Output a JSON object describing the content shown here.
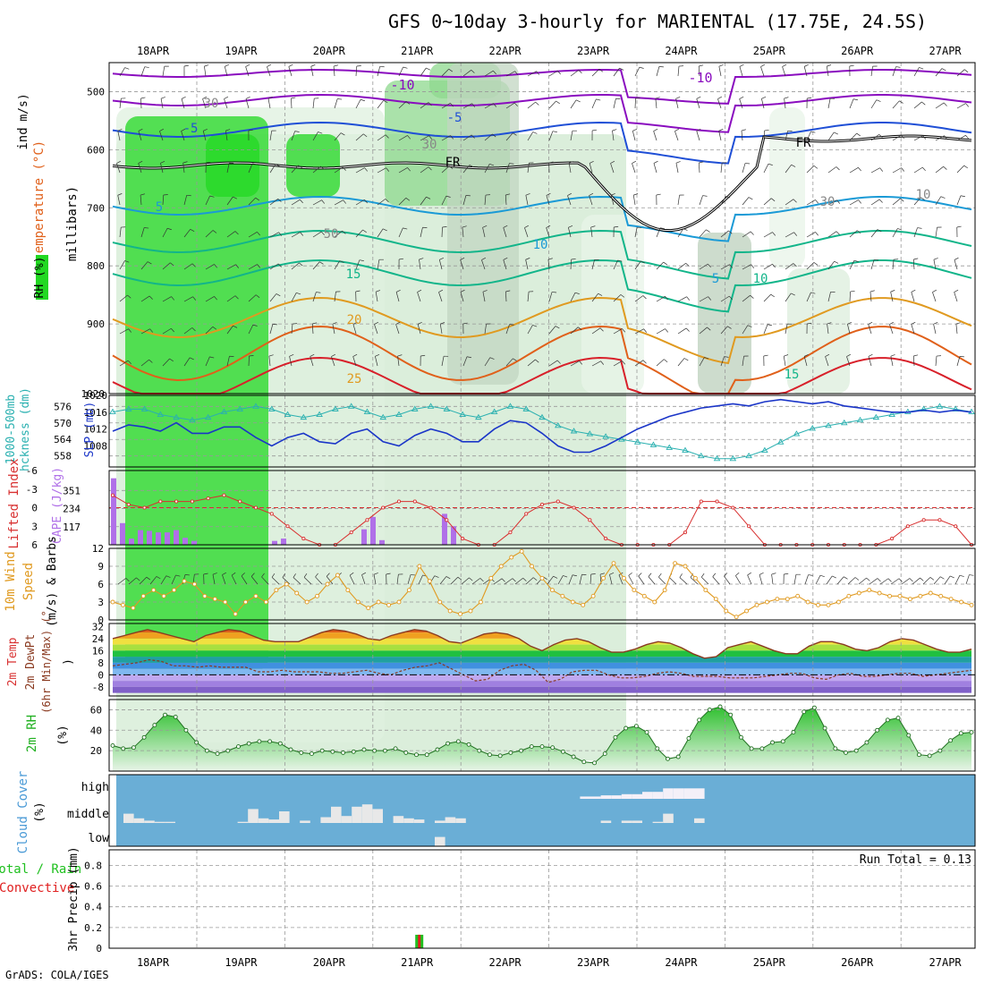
{
  "title": "GFS 0~10day 3-hourly for MARIENTAL (17.75E, 24.5S)",
  "footer": "GrADS: COLA/IGES",
  "colors": {
    "temp_purple": "#8a0dbf",
    "temp_blue": "#1f4fd6",
    "temp_lightblue": "#1a9ad6",
    "temp_teal": "#12b58a",
    "temp_orange": "#e09a20",
    "temp_dark_orange": "#e0601a",
    "temp_red": "#d8202a",
    "rh_green": "#22d822",
    "thickness": "#2ab0b0",
    "slp": "#1a35c8",
    "lifted_index": "#d83030",
    "cape": "#b070e8",
    "wind_speed": "#e09a20",
    "cloud_bg": "#6aaed6",
    "cloud_fill": "#e8e8e8",
    "precip_total": "#20c020",
    "precip_conv": "#e02020"
  },
  "chart_data": [
    {
      "type": "line",
      "panel": "upper-air",
      "y_axis_title": "RH (%) Temperature (°C) Wind (m/s) (millibars)",
      "y_ticks": [
        500,
        600,
        700,
        800,
        900,
        1020
      ],
      "ylim": [
        450,
        1020
      ],
      "date_labels": [
        "18APR",
        "19APR",
        "20APR",
        "21APR",
        "22APR",
        "23APR",
        "24APR",
        "25APR",
        "26APR",
        "27APR"
      ],
      "contour_labels": [
        "-10",
        "-10",
        "-5",
        "-5",
        "5",
        "10",
        "15",
        "20",
        "25",
        "5",
        "10",
        "15",
        "FR",
        "FR",
        "30",
        "30",
        "30",
        "50",
        "10"
      ]
    },
    {
      "type": "line",
      "panel": "thickness-slp",
      "y_left_title": "1000-500mb Thckness (dm)",
      "y_right_title": "SLP (mb)",
      "thickness_ticks": [
        576,
        570,
        564,
        558
      ],
      "slp_ticks": [
        1020,
        1016,
        1012,
        1008
      ],
      "series": [
        {
          "name": "Thickness",
          "values": [
            574,
            575,
            575,
            573,
            572,
            571,
            572,
            574,
            575,
            576,
            575,
            573,
            572,
            573,
            575,
            576,
            574,
            572,
            573,
            575,
            576,
            575,
            573,
            572,
            574,
            576,
            575,
            572,
            569,
            567,
            566,
            565,
            564,
            563,
            562,
            561,
            560,
            558,
            557,
            557,
            558,
            560,
            563,
            566,
            568,
            569,
            570,
            571,
            572,
            573,
            574,
            575,
            576,
            575,
            574
          ]
        },
        {
          "name": "SLP",
          "values": [
            1011.5,
            1013,
            1012.5,
            1011.5,
            1013.5,
            1011,
            1011,
            1012.5,
            1012.5,
            1010,
            1008,
            1010,
            1011,
            1009,
            1008.5,
            1011,
            1012,
            1009,
            1008,
            1010.5,
            1012,
            1011,
            1009,
            1009,
            1012,
            1014,
            1013.5,
            1011,
            1008,
            1006.5,
            1006.5,
            1008,
            1010,
            1012,
            1013.5,
            1015,
            1016,
            1017,
            1017.5,
            1018,
            1017.5,
            1018.5,
            1019,
            1018.5,
            1018,
            1018.5,
            1017.5,
            1017,
            1016.5,
            1016,
            1016,
            1016.5,
            1016,
            1016.5,
            1016
          ]
        }
      ]
    },
    {
      "type": "bar",
      "panel": "lifted-cape",
      "y_left_title": "Lifted Index",
      "y_right_title": "CAPE (J/kg)",
      "li_ticks": [
        -6,
        -3,
        0,
        3,
        6
      ],
      "cape_ticks": [
        351,
        234,
        117
      ],
      "series": [
        {
          "name": "CAPE",
          "values": [
            430,
            140,
            40,
            95,
            90,
            80,
            80,
            95,
            45,
            25,
            0,
            0,
            0,
            0,
            0,
            0,
            0,
            0,
            25,
            40,
            0,
            0,
            0,
            0,
            0,
            0,
            0,
            0,
            100,
            180,
            30,
            0,
            0,
            0,
            0,
            0,
            0,
            200,
            120,
            0
          ]
        },
        {
          "name": "Lifted Index",
          "values": [
            -2,
            -0.5,
            0,
            -1,
            -1,
            -1,
            -1.5,
            -2,
            -1,
            0,
            1,
            3,
            5,
            6,
            6,
            4,
            2,
            0,
            -1,
            -1,
            0,
            2,
            5,
            6,
            6,
            4,
            1,
            -0.5,
            -1,
            0,
            2,
            5,
            6,
            6,
            6,
            6,
            4,
            -1,
            -1,
            0,
            3,
            6,
            6,
            6,
            6,
            6,
            6,
            6,
            6,
            5,
            3,
            2,
            2,
            3,
            6
          ]
        }
      ]
    },
    {
      "type": "line",
      "panel": "wind-10m",
      "y_title": "10m Wind Speed (m/s) & Barbs",
      "y_ticks": [
        12,
        9,
        6,
        3,
        0
      ],
      "ylim": [
        0,
        12
      ],
      "series": [
        {
          "name": "Speed",
          "values": [
            3,
            2.5,
            2,
            4,
            5,
            4,
            5,
            6.5,
            6,
            4,
            3.5,
            3,
            1,
            3,
            4,
            3,
            5,
            6,
            4.5,
            3,
            4,
            6,
            7.5,
            5,
            3,
            2,
            3,
            2.5,
            3,
            5,
            9,
            6.5,
            3,
            1.5,
            1,
            1.5,
            3,
            7,
            9,
            10.5,
            11.5,
            9,
            7,
            5,
            4,
            3,
            2.5,
            4,
            7,
            9.5,
            7,
            5,
            4,
            3,
            5,
            9.5,
            9,
            7,
            5,
            3.5,
            1.5,
            0.5,
            1.5,
            2.5,
            3,
            3.5,
            3.5,
            4,
            3,
            2.5,
            2.5,
            3,
            4,
            4.5,
            5,
            4.5,
            4,
            4,
            3.5,
            4,
            4.5,
            4,
            3.5,
            3,
            2.5
          ]
        }
      ]
    },
    {
      "type": "area",
      "panel": "temp-2m",
      "y_title": "2m Temp 2m DewPt (6hr Min/Max) (°C)",
      "y_ticks": [
        32,
        24,
        16,
        8,
        0,
        -8
      ],
      "ylim": [
        -14,
        34
      ],
      "series": [
        {
          "name": "Temp",
          "values": [
            24,
            26,
            28,
            30,
            28,
            26,
            24,
            22,
            26,
            28,
            30,
            29,
            26,
            23,
            22,
            22,
            22,
            25,
            28,
            30,
            29,
            27,
            24,
            23,
            26,
            28,
            30,
            29,
            26,
            22,
            21,
            24,
            27,
            28,
            27,
            24,
            19,
            16,
            20,
            23,
            24,
            22,
            18,
            15,
            15,
            17,
            20,
            22,
            21,
            18,
            14,
            11,
            12,
            18,
            20,
            22,
            19,
            16,
            14,
            14,
            19,
            22,
            22,
            20,
            17,
            16,
            18,
            22,
            24,
            23,
            20,
            17,
            15,
            15,
            17
          ]
        },
        {
          "name": "DewPt",
          "values": [
            6,
            7,
            8,
            10,
            9,
            6,
            6,
            5,
            6,
            5,
            5,
            5,
            2,
            2,
            3,
            2,
            2,
            2,
            1,
            1,
            2,
            3,
            1,
            0,
            3,
            5,
            6,
            8,
            4,
            0,
            -4,
            -3,
            3,
            6,
            7,
            3,
            -5,
            -3,
            2,
            3,
            3,
            0,
            -2,
            -2,
            -1,
            1,
            2,
            1,
            -1,
            -1,
            -1,
            -2,
            -2,
            -2,
            -1,
            0,
            1,
            1,
            -2,
            -3,
            0,
            1,
            -1,
            -1,
            0,
            1,
            1,
            -1,
            0,
            1,
            2,
            3
          ]
        }
      ]
    },
    {
      "type": "area",
      "panel": "rh-2m",
      "y_title": "2m RH (%)",
      "y_ticks": [
        60,
        40,
        20
      ],
      "ylim": [
        0,
        70
      ],
      "series": [
        {
          "name": "RH",
          "values": [
            25,
            22,
            23,
            33,
            45,
            55,
            53,
            40,
            28,
            20,
            17,
            20,
            24,
            27,
            29,
            29,
            27,
            21,
            18,
            17,
            20,
            19,
            18,
            19,
            21,
            20,
            20,
            22,
            18,
            16,
            16,
            21,
            27,
            29,
            26,
            20,
            16,
            15,
            18,
            20,
            24,
            24,
            23,
            19,
            14,
            9,
            8,
            17,
            33,
            42,
            44,
            38,
            22,
            12,
            14,
            32,
            50,
            60,
            63,
            55,
            33,
            22,
            22,
            28,
            29,
            38,
            58,
            62,
            42,
            22,
            18,
            20,
            28,
            40,
            50,
            52,
            35,
            16,
            15,
            20,
            30,
            37,
            38
          ]
        }
      ]
    },
    {
      "type": "bar",
      "panel": "cloud-cover",
      "y_title": "Cloud Cover (%)",
      "layer_labels": [
        "high",
        "middle",
        "low"
      ],
      "series": [
        {
          "name": "high",
          "values": [
            0,
            0,
            0,
            0,
            0,
            0,
            0,
            0,
            0,
            0,
            0,
            0,
            0,
            0,
            0,
            0,
            0,
            0,
            0,
            0,
            0,
            0,
            0,
            0,
            0,
            0,
            0,
            0,
            0,
            0,
            0,
            0,
            0,
            0,
            0,
            0,
            0,
            0,
            0,
            0,
            0,
            0,
            0,
            0,
            10,
            10,
            15,
            15,
            20,
            20,
            30,
            30,
            45,
            45,
            45,
            45,
            0,
            0,
            0,
            0,
            0,
            0,
            0,
            0,
            0,
            0,
            0,
            0,
            0,
            0,
            0,
            0,
            0,
            0,
            0,
            0,
            0,
            0,
            0,
            0,
            0,
            0
          ]
        },
        {
          "name": "middle",
          "values": [
            40,
            20,
            10,
            5,
            5,
            0,
            0,
            0,
            0,
            0,
            0,
            5,
            60,
            20,
            15,
            50,
            0,
            10,
            0,
            25,
            70,
            30,
            70,
            80,
            60,
            0,
            30,
            20,
            15,
            0,
            10,
            25,
            20,
            0,
            0,
            0,
            0,
            0,
            0,
            0,
            0,
            0,
            0,
            0,
            0,
            0,
            10,
            0,
            10,
            10,
            0,
            5,
            40,
            0,
            0,
            20,
            0,
            0,
            0,
            0,
            0,
            0,
            0,
            0,
            0,
            0,
            0,
            0,
            0,
            0,
            0,
            0,
            0,
            0,
            0,
            0,
            0,
            0,
            0,
            0,
            0,
            0
          ]
        },
        {
          "name": "low",
          "values": [
            0,
            0,
            0,
            0,
            0,
            0,
            0,
            0,
            0,
            0,
            0,
            0,
            0,
            0,
            0,
            0,
            0,
            0,
            0,
            0,
            0,
            0,
            0,
            0,
            0,
            0,
            0,
            0,
            0,
            0,
            40,
            0,
            0,
            0,
            0,
            0,
            0,
            0,
            0,
            0,
            0,
            0,
            0,
            0,
            0,
            0,
            0,
            0,
            0,
            0,
            0,
            0,
            0,
            0,
            0,
            0,
            0,
            0,
            0,
            0,
            0,
            0,
            0,
            0,
            0,
            0,
            0,
            0,
            0,
            0,
            0,
            0,
            0,
            0,
            0,
            0,
            0,
            0,
            0,
            0,
            0,
            0
          ]
        }
      ]
    },
    {
      "type": "bar",
      "panel": "precip",
      "y_title": "3hr Precip (mm)",
      "y_left_label_total": "Total / Rain",
      "y_left_label_conv": "Convective",
      "run_total": "Run Total = 0.13",
      "y_ticks": [
        0.8,
        0.6,
        0.4,
        0.2,
        0
      ],
      "ylim": [
        0,
        0.95
      ],
      "date_labels": [
        "18APR",
        "19APR",
        "20APR",
        "21APR",
        "22APR",
        "23APR",
        "24APR",
        "25APR",
        "26APR",
        "27APR"
      ],
      "series": [
        {
          "name": "Total",
          "values": [
            0.13
          ],
          "x_index": [
            27
          ]
        },
        {
          "name": "Convective",
          "values": [
            0.13
          ],
          "x_index": [
            27
          ]
        }
      ]
    }
  ]
}
